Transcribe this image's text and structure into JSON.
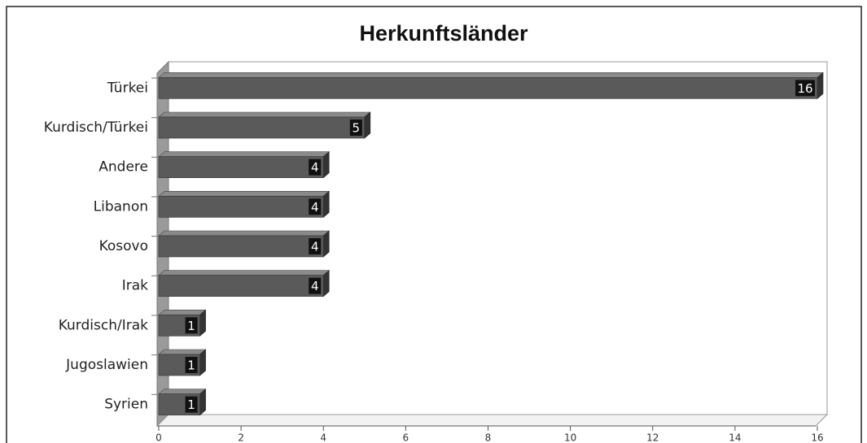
{
  "chart_data": {
    "type": "bar",
    "orientation": "horizontal",
    "title": "Herkunftsländer",
    "categories": [
      "Türkei",
      "Kurdisch/Türkei",
      "Andere",
      "Libanon",
      "Kosovo",
      "Irak",
      "Kurdisch/Irak",
      "Jugoslawien",
      "Syrien"
    ],
    "values": [
      16,
      5,
      4,
      4,
      4,
      4,
      1,
      1,
      1
    ],
    "color": "#5a5a5a",
    "xlim": [
      0,
      16
    ],
    "xticks": [
      0,
      2,
      4,
      6,
      8,
      10,
      12,
      14,
      16
    ]
  }
}
